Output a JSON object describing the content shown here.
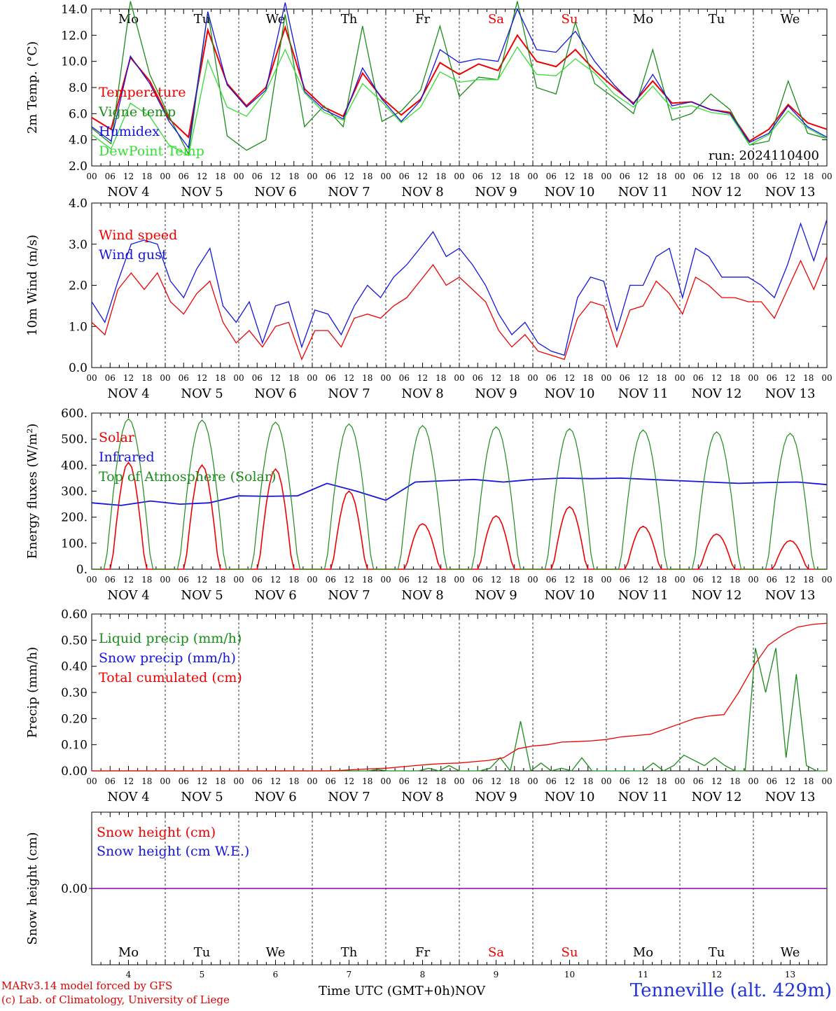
{
  "chart_data": [
    {
      "id": "temp",
      "type": "line",
      "ylabel": "2m Temp. (°C)",
      "ylim": [
        2.0,
        14.0
      ],
      "yticks": [
        "2.0",
        "4.0",
        "6.0",
        "8.0",
        "10.0",
        "12.0",
        "14.0"
      ],
      "xhours": [
        0,
        6,
        12,
        18,
        24,
        30,
        36,
        42,
        48,
        54,
        60,
        66,
        72,
        78,
        84,
        90,
        96,
        102,
        108,
        114,
        120,
        126,
        132,
        138,
        144,
        150,
        156,
        162,
        168,
        174,
        180,
        186,
        192,
        198,
        204,
        210,
        216,
        222,
        228,
        234,
        240
      ],
      "series": [
        {
          "name": "Temperature",
          "color": "#ee0000",
          "values": [
            5.7,
            4.8,
            10.3,
            8.5,
            5.6,
            4.2,
            12.4,
            8.3,
            6.6,
            8.0,
            12.6,
            7.9,
            6.5,
            5.8,
            9.1,
            7.2,
            5.9,
            7.1,
            9.9,
            9.0,
            9.8,
            9.3,
            12.0,
            10.0,
            9.6,
            10.9,
            9.3,
            8.0,
            6.8,
            8.5,
            6.8,
            6.9,
            6.3,
            6.1,
            3.9,
            4.8,
            6.7,
            5.3,
            4.8
          ]
        },
        {
          "name": "Vigne temp",
          "color": "#1a8c1a",
          "values": [
            4.9,
            3.7,
            14.6,
            9.0,
            5.8,
            2.9,
            13.8,
            4.3,
            3.2,
            4.0,
            13.6,
            5.0,
            6.6,
            5.0,
            12.7,
            5.4,
            6.2,
            7.8,
            12.7,
            7.3,
            8.8,
            8.6,
            14.6,
            8.0,
            7.5,
            13.0,
            8.3,
            7.2,
            6.0,
            10.9,
            5.5,
            6.0,
            7.5,
            6.3,
            3.6,
            3.9,
            8.5,
            4.5,
            4.1
          ]
        },
        {
          "name": "Humidex",
          "color": "#1515dd",
          "values": [
            5.0,
            3.9,
            10.4,
            8.3,
            5.4,
            3.4,
            13.8,
            8.2,
            6.5,
            7.8,
            14.5,
            7.7,
            6.3,
            5.6,
            9.5,
            7.1,
            5.4,
            7.0,
            10.9,
            9.9,
            10.2,
            10.0,
            14.0,
            10.9,
            10.7,
            12.3,
            10.0,
            8.2,
            6.7,
            9.0,
            6.6,
            6.9,
            6.3,
            6.0,
            3.8,
            4.5,
            6.6,
            5.0,
            4.2
          ]
        },
        {
          "name": "DewPoint Temp",
          "color": "#33dd33",
          "values": [
            4.4,
            3.3,
            6.8,
            5.8,
            3.6,
            2.8,
            10.1,
            6.5,
            5.8,
            7.7,
            10.9,
            7.6,
            6.1,
            5.5,
            8.3,
            6.9,
            5.3,
            6.5,
            9.2,
            8.4,
            8.6,
            8.6,
            11.1,
            9.0,
            8.9,
            10.2,
            9.1,
            7.5,
            6.5,
            8.1,
            6.4,
            6.6,
            6.1,
            5.9,
            3.6,
            4.4,
            6.2,
            4.9,
            4.1
          ]
        }
      ],
      "annotation": "run: 2024110400"
    },
    {
      "id": "wind",
      "type": "line",
      "ylabel": "10m Wind (m/s)",
      "ylim": [
        0.0,
        4.0
      ],
      "yticks": [
        "0.0",
        "1.0",
        "2.0",
        "3.0",
        "4.0"
      ],
      "series": [
        {
          "name": "Wind speed",
          "color": "#ee0000",
          "values": [
            1.1,
            0.8,
            1.9,
            2.3,
            1.9,
            2.3,
            1.6,
            1.3,
            1.8,
            2.1,
            1.1,
            0.6,
            0.9,
            0.5,
            1.0,
            1.1,
            0.2,
            0.9,
            0.9,
            0.5,
            1.2,
            1.3,
            1.2,
            1.5,
            1.7,
            2.1,
            2.5,
            2.0,
            2.2,
            1.9,
            1.6,
            0.9,
            0.5,
            0.8,
            0.4,
            0.3,
            0.2,
            1.2,
            1.6,
            1.5,
            0.5,
            1.4,
            1.5,
            2.1,
            1.8,
            1.3,
            2.2,
            2.0,
            1.7,
            1.7,
            1.6,
            1.6,
            1.2,
            1.9,
            2.6,
            1.9,
            2.7
          ]
        },
        {
          "name": "Wind gust",
          "color": "#1515dd",
          "values": [
            1.6,
            1.1,
            2.1,
            3.0,
            3.1,
            3.0,
            2.1,
            1.7,
            2.4,
            2.9,
            1.5,
            1.1,
            1.6,
            0.6,
            1.5,
            1.6,
            0.5,
            1.4,
            1.3,
            0.8,
            1.5,
            2.0,
            1.7,
            2.2,
            2.5,
            2.9,
            3.3,
            2.7,
            2.9,
            2.5,
            2.0,
            1.3,
            0.8,
            1.1,
            0.6,
            0.4,
            0.3,
            1.7,
            2.2,
            2.1,
            0.9,
            2.0,
            2.0,
            2.7,
            2.9,
            1.7,
            2.9,
            2.7,
            2.2,
            2.2,
            2.2,
            2.0,
            1.7,
            2.5,
            3.5,
            2.6,
            3.6
          ]
        }
      ]
    },
    {
      "id": "flux",
      "type": "line",
      "ylabel": "Energy fluxes (W/m²)",
      "ylim": [
        0,
        600
      ],
      "yticks": [
        "0.",
        "100.",
        "200.",
        "300.",
        "400.",
        "500.",
        "600."
      ],
      "series": [
        {
          "name": "Solar",
          "color": "#ee0000",
          "peaks": [
            410,
            400,
            385,
            300,
            175,
            205,
            240,
            165,
            135,
            110
          ]
        },
        {
          "name": "Infrared",
          "color": "#1515dd",
          "values": [
            255,
            245,
            262,
            250,
            255,
            282,
            280,
            282,
            330,
            300,
            265,
            335,
            340,
            345,
            335,
            345,
            350,
            348,
            350,
            345,
            340,
            335,
            330,
            333,
            335,
            325
          ]
        },
        {
          "name": "Top of Atmosphere (Solar)",
          "color": "#1a8c1a",
          "peaks": [
            578,
            573,
            565,
            558,
            552,
            547,
            540,
            535,
            528,
            522
          ]
        }
      ]
    },
    {
      "id": "precip",
      "type": "line",
      "ylabel": "Precip (mm/h)",
      "ylim": [
        0.0,
        0.6
      ],
      "yticks": [
        "0.00",
        "0.10",
        "0.20",
        "0.30",
        "0.40",
        "0.50",
        "0.60"
      ],
      "series": [
        {
          "name": "Liquid precip (mm/h)",
          "color": "#1a8c1a",
          "values": [
            0,
            0,
            0,
            0,
            0,
            0,
            0,
            0,
            0,
            0,
            0,
            0,
            0,
            0,
            0,
            0,
            0,
            0,
            0,
            0,
            0,
            0,
            0,
            0,
            0,
            0,
            0,
            0,
            0.005,
            0,
            0,
            0,
            0,
            0.01,
            0,
            0.02,
            0,
            0,
            0,
            0.01,
            0.05,
            0,
            0.19,
            0,
            0.03,
            0,
            0.01,
            0,
            0.05,
            0,
            0,
            0,
            0,
            0,
            0,
            0.03,
            0,
            0.02,
            0.06,
            0.04,
            0.02,
            0.05,
            0.02,
            0,
            0,
            0.47,
            0.3,
            0.47,
            0.05,
            0.37,
            0.02,
            0,
            0
          ]
        },
        {
          "name": "Snow precip (mm/h)",
          "color": "#1515dd",
          "values": []
        },
        {
          "name": "Total cumulated (cm)",
          "color": "#ee0000",
          "values": [
            0,
            0,
            0,
            0,
            0,
            0,
            0,
            0,
            0,
            0,
            0,
            0,
            0,
            0,
            0,
            0,
            0,
            0.002,
            0.005,
            0.008,
            0.01,
            0.015,
            0.02,
            0.025,
            0.028,
            0.03,
            0.035,
            0.04,
            0.05,
            0.085,
            0.095,
            0.1,
            0.11,
            0.112,
            0.115,
            0.12,
            0.13,
            0.135,
            0.14,
            0.16,
            0.18,
            0.2,
            0.21,
            0.215,
            0.3,
            0.4,
            0.48,
            0.52,
            0.55,
            0.56,
            0.565
          ]
        }
      ]
    },
    {
      "id": "snow",
      "type": "line",
      "ylabel": "Snow height (cm)",
      "yticks": [
        "0.00"
      ],
      "series": [
        {
          "name": "Snow height (cm)",
          "color": "#ee0000",
          "values": [
            0,
            0
          ]
        },
        {
          "name": "Snow height (cm W.E.)",
          "color": "#1515dd",
          "values": [
            0,
            0
          ]
        }
      ]
    }
  ],
  "days": {
    "names": [
      "Mo",
      "Tu",
      "We",
      "Th",
      "Fr",
      "Sa",
      "Su",
      "Mo",
      "Tu",
      "We"
    ],
    "weekend": [
      false,
      false,
      false,
      false,
      false,
      true,
      true,
      false,
      false,
      false
    ],
    "nov_labels": [
      "NOV  4",
      "NOV  5",
      "NOV  6",
      "NOV  7",
      "NOV  8",
      "NOV  9",
      "NOV 10",
      "NOV 11",
      "NOV 12",
      "NOV 13"
    ],
    "day_numbers": [
      "4",
      "5",
      "6",
      "7",
      "8",
      "9",
      "10",
      "11",
      "12",
      "13"
    ],
    "hour_ticks": [
      "00",
      "06",
      "12",
      "18"
    ],
    "final_tick": "00"
  },
  "colors": {
    "red": "#ee0000",
    "green": "#1a8c1a",
    "blue": "#1515dd",
    "lightgreen": "#33dd33",
    "purple": "#8800aa",
    "weekend": "#ee0000"
  },
  "footer": {
    "model": "MARv3.14 model forced by GFS",
    "credit": "(c) Lab. of Climatology, University of Liege",
    "xlabel": "Time UTC (GMT+0h)",
    "month": "NOV",
    "station": "Tenneville (alt. 429m)"
  }
}
